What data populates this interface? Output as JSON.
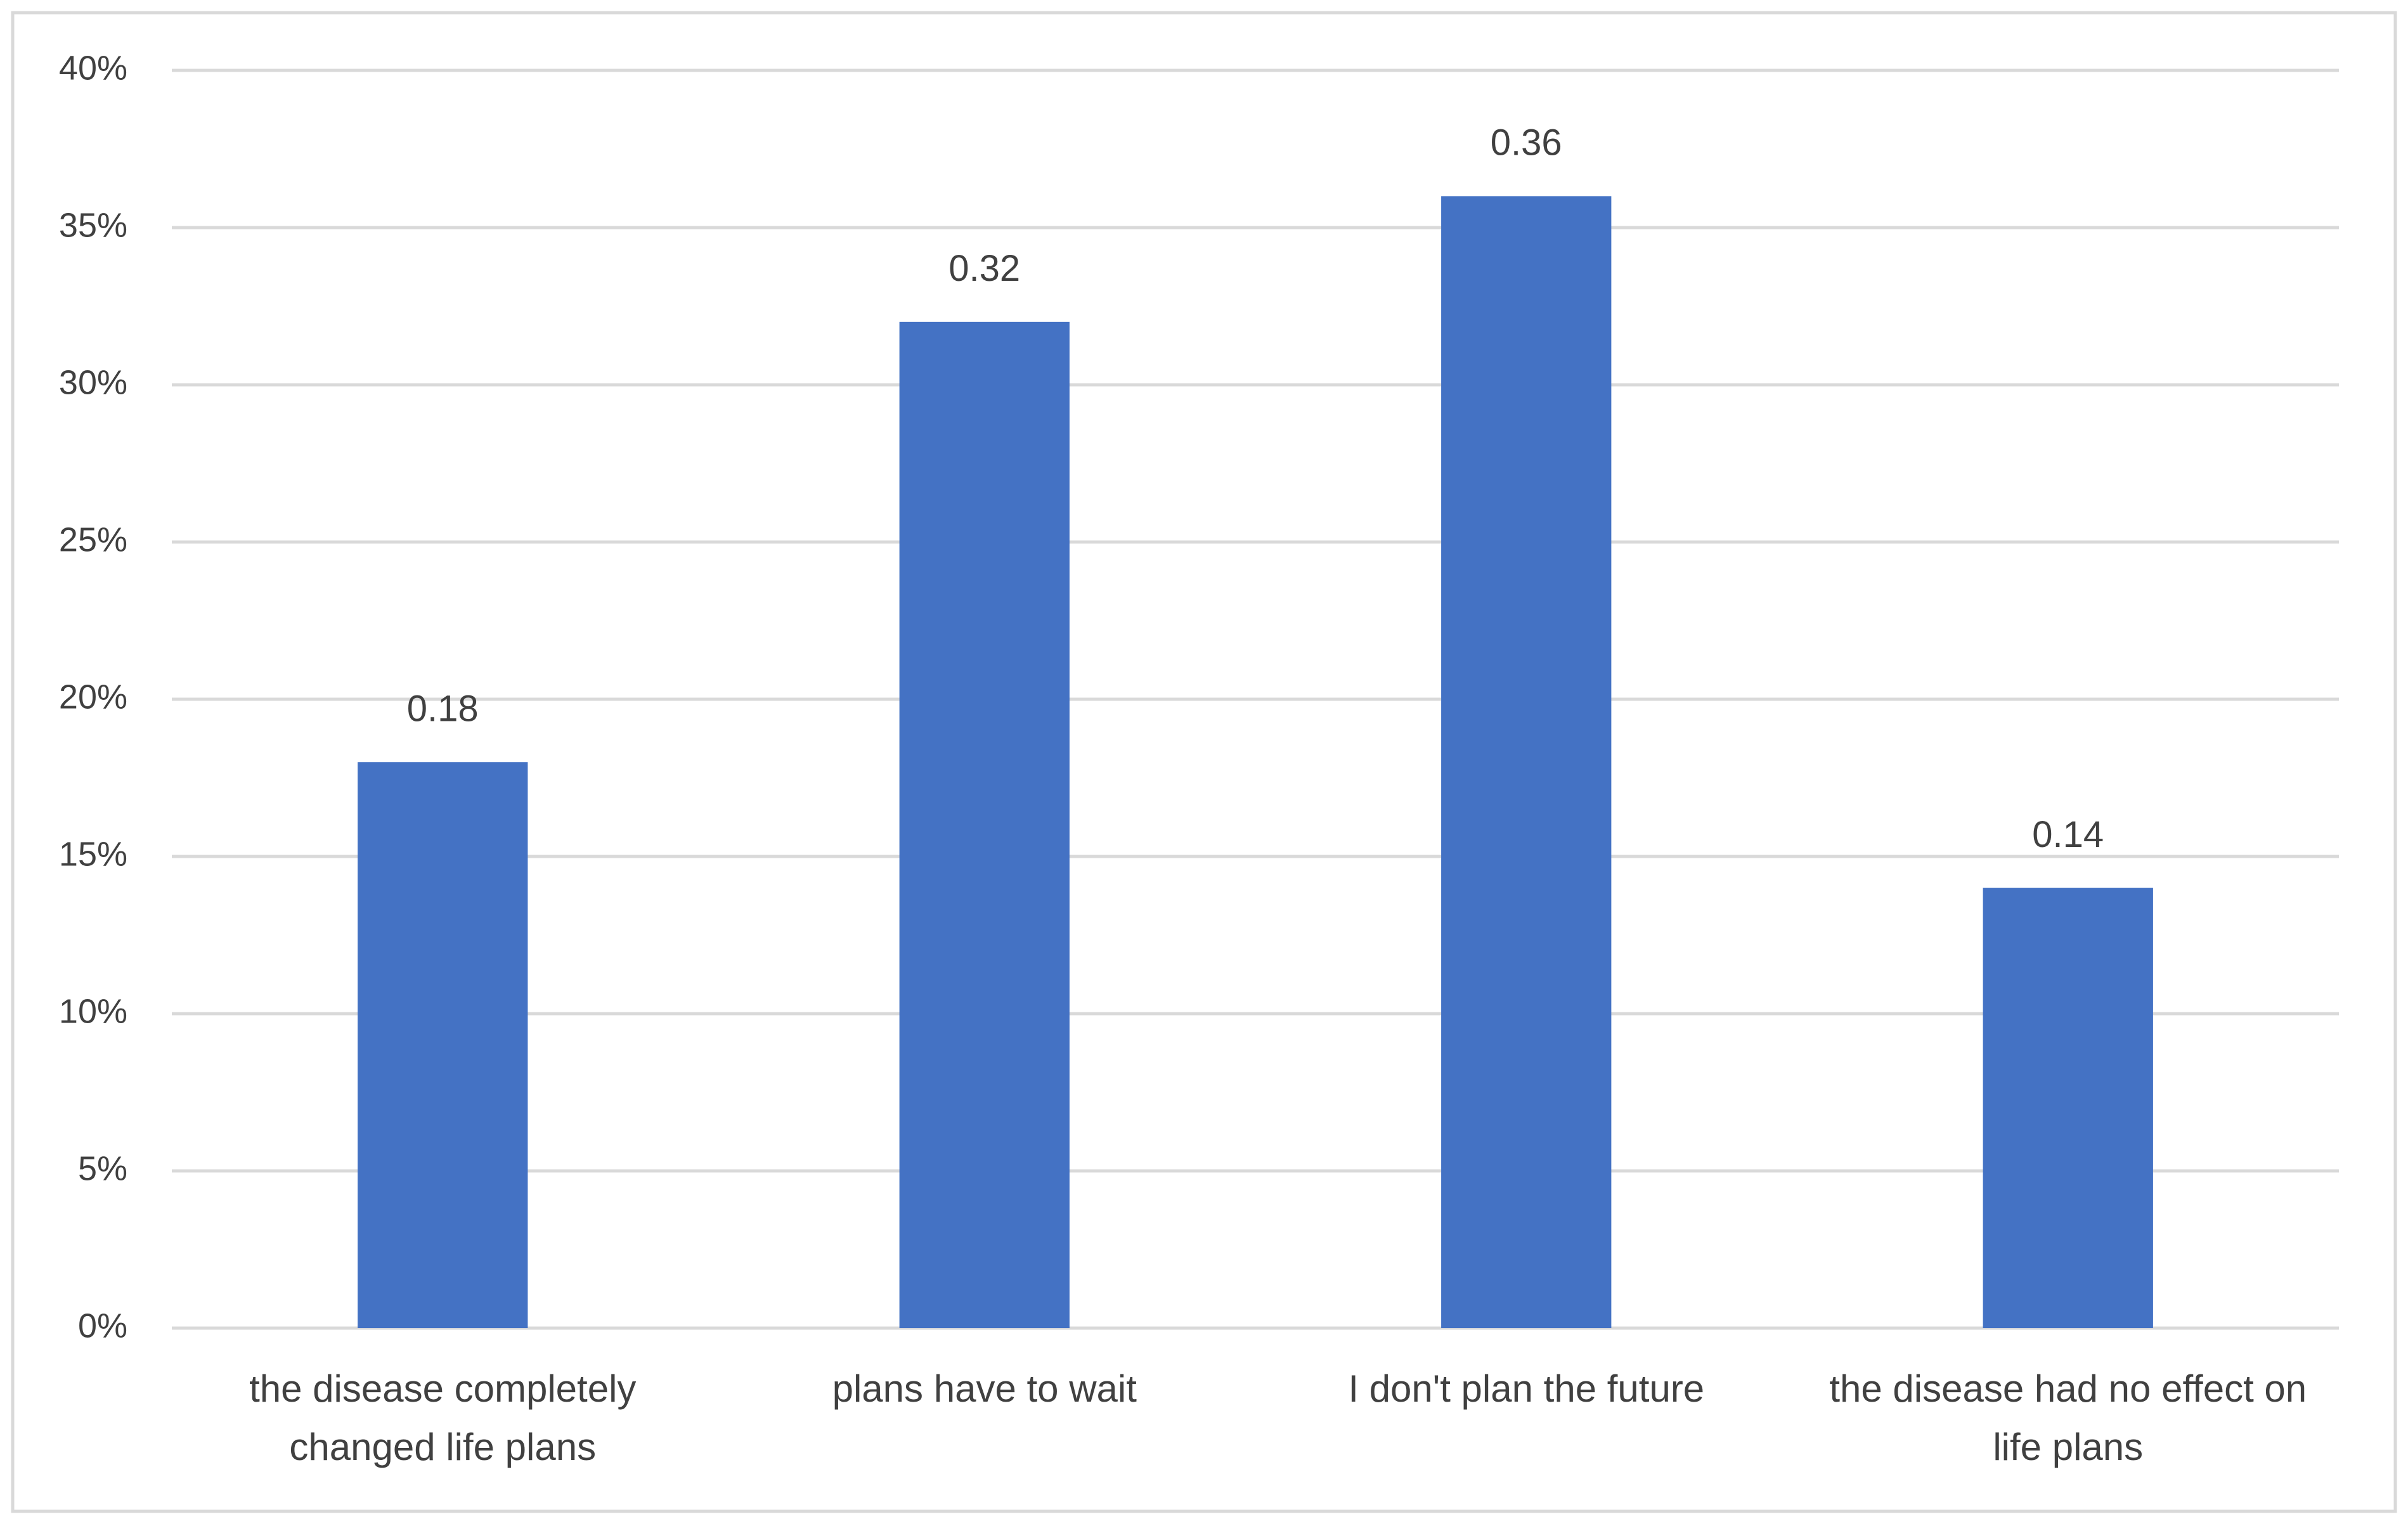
{
  "chart_data": {
    "type": "bar",
    "categories": [
      "the disease completely changed life plans",
      "plans have to wait",
      "I don't plan the future",
      "the disease had no effect on life plans"
    ],
    "values": [
      18,
      32,
      36,
      14
    ],
    "value_labels": [
      "0.18",
      "0.32",
      "0.36",
      "0.14"
    ],
    "color": "#4472c4",
    "ylim": [
      0,
      40
    ],
    "yticks": [
      {
        "value": 0,
        "label": "0%"
      },
      {
        "value": 5,
        "label": "5%"
      },
      {
        "value": 10,
        "label": "10%"
      },
      {
        "value": 15,
        "label": "15%"
      },
      {
        "value": 20,
        "label": "20%"
      },
      {
        "value": 25,
        "label": "25%"
      },
      {
        "value": 30,
        "label": "30%"
      },
      {
        "value": 35,
        "label": "35%"
      },
      {
        "value": 40,
        "label": "40%"
      }
    ],
    "grid": true
  }
}
